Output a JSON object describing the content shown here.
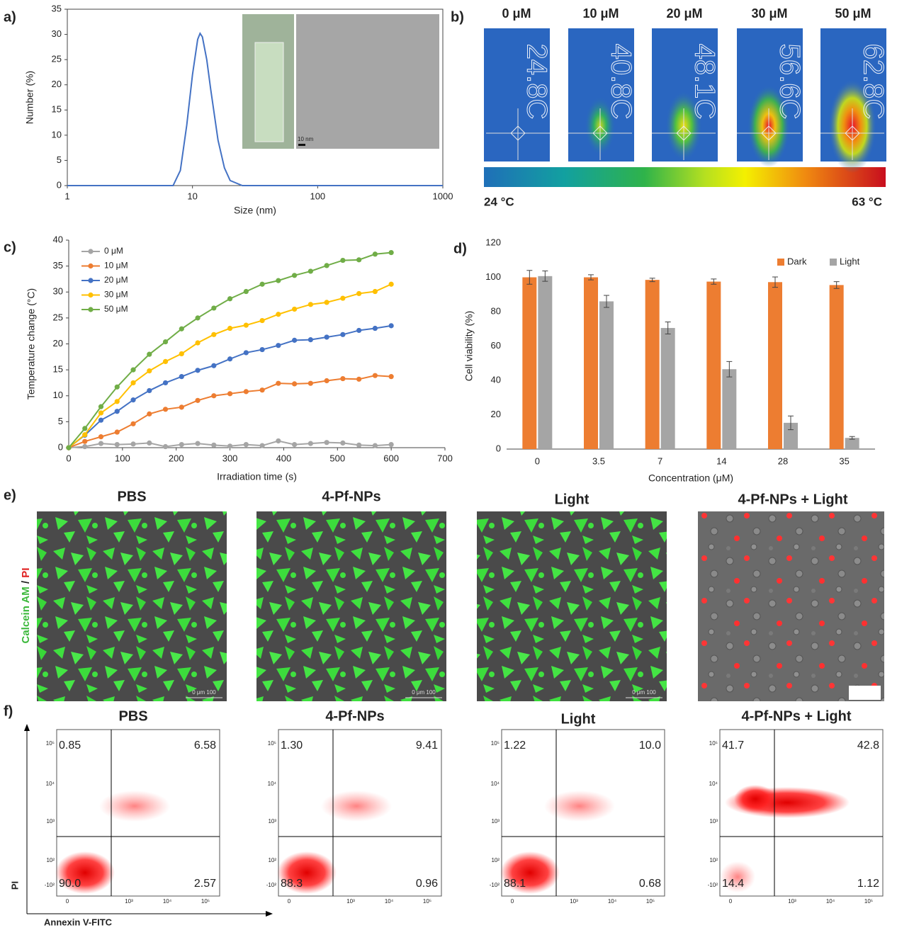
{
  "panel_labels": [
    "a)",
    "b)",
    "c)",
    "d)",
    "e)",
    "f)"
  ],
  "chart_data": [
    {
      "type": "line",
      "x": [
        1,
        7,
        8,
        9,
        10,
        11,
        11.5,
        12,
        13,
        14,
        16,
        18,
        20,
        25,
        1000
      ],
      "values": [
        0,
        0,
        3,
        12,
        22,
        29,
        30.2,
        29.5,
        25,
        19,
        9,
        3.5,
        1,
        0,
        0
      ],
      "color": "#4472c4",
      "xlog": true,
      "xlim": [
        1,
        1000
      ],
      "xticks": [
        1,
        10,
        100,
        1000
      ],
      "ylim": [
        0,
        35
      ],
      "yticks": [
        0,
        5,
        10,
        15,
        20,
        25,
        30,
        35
      ],
      "x_label": "Size (nm)",
      "y_label": "Number (%)",
      "inset_scale_label": "10 nm"
    },
    {
      "type": "line",
      "markers": true,
      "legend": "upper-left",
      "x": [
        0,
        30,
        60,
        90,
        120,
        150,
        180,
        210,
        240,
        270,
        300,
        330,
        360,
        390,
        420,
        450,
        480,
        510,
        540,
        570,
        600
      ],
      "series": [
        {
          "name": "0 μM",
          "color": "#a5a5a5",
          "values": [
            0,
            0.2,
            0.8,
            0.6,
            0.7,
            0.9,
            0.2,
            0.6,
            0.8,
            0.5,
            0.3,
            0.6,
            0.4,
            1.3,
            0.6,
            0.8,
            1.0,
            0.9,
            0.5,
            0.4,
            0.6
          ]
        },
        {
          "name": "10 μM",
          "color": "#ed7d31",
          "values": [
            0,
            1.2,
            2.1,
            3.0,
            4.6,
            6.5,
            7.4,
            7.8,
            9.1,
            10.0,
            10.4,
            10.8,
            11.1,
            12.4,
            12.3,
            12.4,
            12.9,
            13.3,
            13.2,
            13.9,
            13.7
          ]
        },
        {
          "name": "20 μM",
          "color": "#4472c4",
          "values": [
            0,
            2.4,
            5.3,
            7.0,
            9.2,
            11.0,
            12.5,
            13.7,
            14.9,
            15.8,
            17.1,
            18.3,
            18.9,
            19.7,
            20.7,
            20.8,
            21.3,
            21.8,
            22.6,
            23.0,
            23.5
          ]
        },
        {
          "name": "30 μM",
          "color": "#ffc000",
          "values": [
            0,
            2.5,
            6.7,
            8.9,
            12.5,
            14.8,
            16.6,
            18.1,
            20.2,
            21.8,
            23.0,
            23.6,
            24.5,
            25.7,
            26.7,
            27.6,
            28.0,
            28.8,
            29.7,
            30.1,
            31.5
          ]
        },
        {
          "name": "50 μM",
          "color": "#70ad47",
          "values": [
            0,
            3.7,
            7.9,
            11.7,
            15.0,
            18.0,
            20.4,
            22.9,
            25.0,
            26.9,
            28.7,
            30.1,
            31.5,
            32.2,
            33.2,
            34.0,
            35.1,
            36.1,
            36.2,
            37.3,
            37.6
          ]
        }
      ],
      "xlim": [
        0,
        700
      ],
      "xticks": [
        0,
        100,
        200,
        300,
        400,
        500,
        600,
        700
      ],
      "ylim": [
        0,
        40
      ],
      "yticks": [
        0,
        5,
        10,
        15,
        20,
        25,
        30,
        35,
        40
      ],
      "x_label": "Irradiation time (s)",
      "y_label": "Temperature change (°C)"
    },
    {
      "type": "bar",
      "legend": "upper-right",
      "categories": [
        "0",
        "3.5",
        "7",
        "14",
        "28",
        "35"
      ],
      "series": [
        {
          "name": "Dark",
          "color": "#ed7d31",
          "values": [
            100,
            100,
            98.5,
            97.5,
            97.2,
            95.5
          ],
          "errors": [
            4,
            1.5,
            1,
            1.5,
            3,
            2
          ]
        },
        {
          "name": "Light",
          "color": "#a5a5a5",
          "values": [
            100.7,
            86,
            70.5,
            46.5,
            15.3,
            6.5
          ],
          "errors": [
            3,
            3.5,
            3.5,
            4.5,
            4,
            0.8
          ]
        }
      ],
      "ylim": [
        0,
        120
      ],
      "yticks": [
        0,
        20,
        40,
        60,
        80,
        100,
        120
      ],
      "x_label": "Concentration (μM)",
      "y_label": "Cell viability (%)"
    }
  ],
  "thermal": {
    "concentrations": [
      "0 μM",
      "10 μM",
      "20 μM",
      "30 μM",
      "50 μM"
    ],
    "temperatures": [
      "24.8C",
      "40.8C",
      "48.1C",
      "56.6C",
      "62.8C"
    ],
    "scale_min": "24 °C",
    "scale_max": "63 °C"
  },
  "microscopy": {
    "titles": [
      "PBS",
      "4-Pf-NPs",
      "Light",
      "4-Pf-NPs + Light"
    ],
    "stain_green": "Calcein AM",
    "stain_sep": " / ",
    "stain_red": "PI",
    "scale_label": "0   μm   100"
  },
  "flow": {
    "titles": [
      "PBS",
      "4-Pf-NPs",
      "Light",
      "4-Pf-NPs + Light"
    ],
    "quadrants": [
      [
        "0.85",
        "6.58",
        "90.0",
        "2.57"
      ],
      [
        "1.30",
        "9.41",
        "88.3",
        "0.96"
      ],
      [
        "1.22",
        "10.0",
        "88.1",
        "0.68"
      ],
      [
        "41.7",
        "42.8",
        "14.4",
        "1.12"
      ]
    ],
    "yticks": [
      "10⁵",
      "10⁴",
      "10³",
      "10²",
      "-10²"
    ],
    "xticks": [
      "0",
      "10³",
      "10⁴",
      "10⁵"
    ],
    "y_axis_label": "PI",
    "x_axis_label": "Annexin V-FITC"
  }
}
